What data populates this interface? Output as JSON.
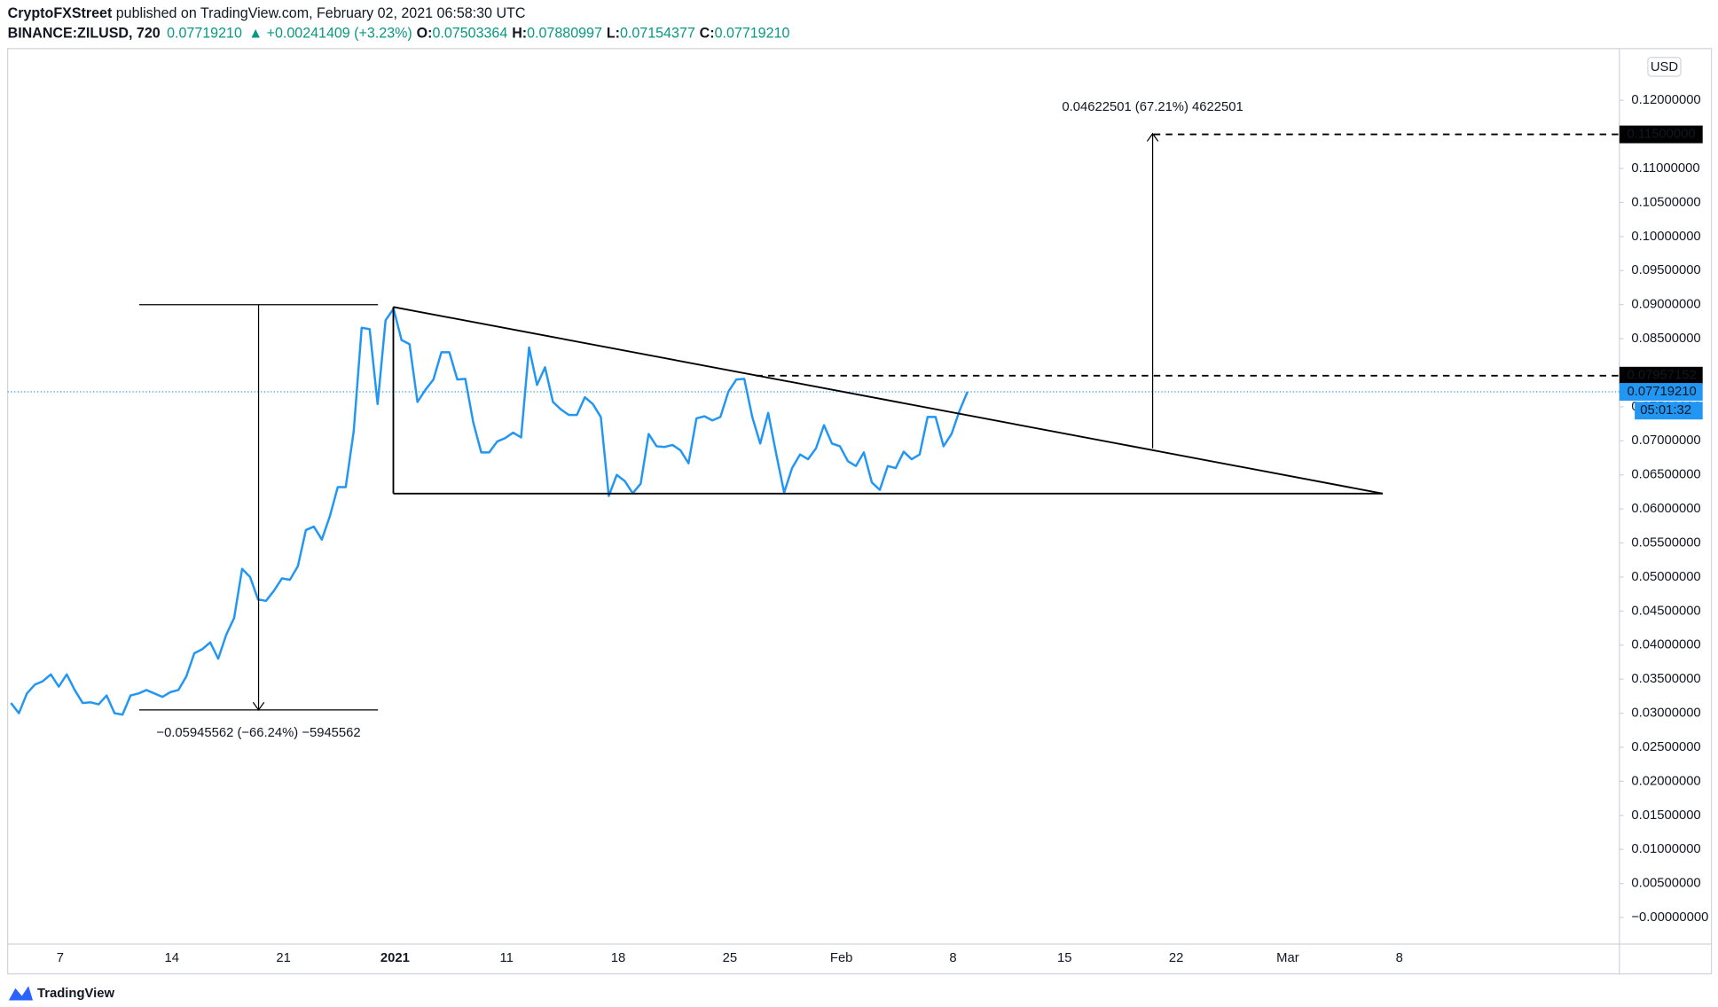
{
  "header": {
    "author": "CryptoFXStreet",
    "published": " published on TradingView.com, February 02, 2021 06:58:30 UTC",
    "symbol": "BINANCE:ZILUSD, 720",
    "last": "0.07719210",
    "change": "▲ +0.00241409 (+3.23%)",
    "open_label": "O:",
    "open": "0.07503364",
    "high_label": "H:",
    "high": "0.07880997",
    "low_label": "L:",
    "low": "0.07154377",
    "close_label": "C:",
    "close": "0.07719210"
  },
  "chart_data": {
    "type": "line",
    "currency": "USD",
    "xtick_labels": [
      "7",
      "14",
      "21",
      "2021",
      "11",
      "18",
      "25",
      "Feb",
      "8",
      "15",
      "22",
      "Mar",
      "8"
    ],
    "series": [
      {
        "name": "ZILUSD",
        "color": "#2196f3",
        "values": [
          0.0315,
          0.03,
          0.0329,
          0.0342,
          0.0347,
          0.0357,
          0.0339,
          0.0357,
          0.0334,
          0.0315,
          0.0316,
          0.0313,
          0.0326,
          0.03,
          0.0298,
          0.0326,
          0.0329,
          0.0334,
          0.0329,
          0.0324,
          0.0331,
          0.0334,
          0.0354,
          0.0388,
          0.0394,
          0.0404,
          0.038,
          0.0415,
          0.044,
          0.0512,
          0.05,
          0.0467,
          0.0465,
          0.048,
          0.0498,
          0.0496,
          0.0516,
          0.0569,
          0.0574,
          0.0555,
          0.0589,
          0.0632,
          0.0632,
          0.0714,
          0.0866,
          0.0864,
          0.0754,
          0.0877,
          0.0894,
          0.0848,
          0.0842,
          0.0757,
          0.0775,
          0.079,
          0.083,
          0.083,
          0.079,
          0.0791,
          0.0727,
          0.0683,
          0.0683,
          0.0699,
          0.0704,
          0.0712,
          0.0705,
          0.0837,
          0.0782,
          0.0808,
          0.0757,
          0.0746,
          0.0738,
          0.0738,
          0.0764,
          0.0754,
          0.0735,
          0.0619,
          0.065,
          0.0641,
          0.0623,
          0.0637,
          0.071,
          0.0692,
          0.0691,
          0.0694,
          0.0686,
          0.0667,
          0.0733,
          0.0736,
          0.073,
          0.0735,
          0.0772,
          0.079,
          0.0791,
          0.0735,
          0.0696,
          0.0741,
          0.0681,
          0.0624,
          0.066,
          0.068,
          0.0673,
          0.0689,
          0.0723,
          0.0696,
          0.0692,
          0.067,
          0.0663,
          0.0683,
          0.0639,
          0.0628,
          0.0663,
          0.066,
          0.0684,
          0.0673,
          0.068,
          0.0735,
          0.0735,
          0.0692,
          0.071,
          0.0744,
          0.0772
        ]
      }
    ],
    "ylim": [
      -0.0039,
      0.1276
    ],
    "yticks": [
      {
        "value": 0,
        "label": "−0.00000000"
      },
      {
        "value": 0.005,
        "label": "0.00500000"
      },
      {
        "value": 0.01,
        "label": "0.01000000"
      },
      {
        "value": 0.015,
        "label": "0.01500000"
      },
      {
        "value": 0.02,
        "label": "0.02000000"
      },
      {
        "value": 0.025,
        "label": "0.02500000"
      },
      {
        "value": 0.03,
        "label": "0.03000000"
      },
      {
        "value": 0.035,
        "label": "0.03500000"
      },
      {
        "value": 0.04,
        "label": "0.04000000"
      },
      {
        "value": 0.045,
        "label": "0.04500000"
      },
      {
        "value": 0.05,
        "label": "0.05000000"
      },
      {
        "value": 0.055,
        "label": "0.05500000"
      },
      {
        "value": 0.06,
        "label": "0.06000000"
      },
      {
        "value": 0.065,
        "label": "0.06500000"
      },
      {
        "value": 0.07,
        "label": "0.07000000"
      },
      {
        "value": 0.075,
        "label": "0.07500000"
      },
      {
        "value": 0.08,
        "label": "0.08000000"
      },
      {
        "value": 0.085,
        "label": "0.08500000"
      },
      {
        "value": 0.09,
        "label": "0.09000000"
      },
      {
        "value": 0.095,
        "label": "0.09500000"
      },
      {
        "value": 0.1,
        "label": "0.10000000"
      },
      {
        "value": 0.105,
        "label": "0.10500000"
      },
      {
        "value": 0.11,
        "label": "0.11000000"
      },
      {
        "value": 0.12,
        "label": "0.12000000"
      }
    ],
    "grid": false,
    "target_price": {
      "value": 0.115,
      "label": "0.11500000"
    },
    "breakout_price": {
      "value": 0.07957152,
      "label": "0.07957152"
    },
    "last_price": {
      "value": 0.0771921,
      "label": "0.07719210"
    },
    "countdown": "05:01:32",
    "rise_measure": "0.04622501 (67.21%) 4622501",
    "fall_measure": "−0.05945562 (−66.24%) −5945562"
  },
  "footer": {
    "brand": "TradingView"
  }
}
